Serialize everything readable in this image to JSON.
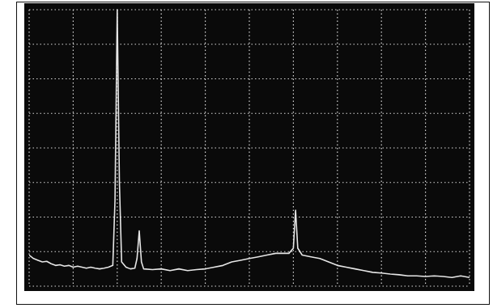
{
  "chart_data": {
    "type": "line",
    "x": [
      0,
      0.1,
      0.2,
      0.3,
      0.4,
      0.5,
      0.6,
      0.7,
      0.8,
      0.9,
      1.0,
      1.1,
      1.2,
      1.3,
      1.4,
      1.5,
      1.6,
      1.7,
      1.8,
      1.9,
      1.95,
      2.0,
      2.05,
      2.1,
      2.2,
      2.3,
      2.4,
      2.45,
      2.5,
      2.55,
      2.6,
      2.8,
      3.0,
      3.2,
      3.4,
      3.6,
      3.8,
      4.0,
      4.2,
      4.4,
      4.6,
      4.8,
      5.0,
      5.2,
      5.4,
      5.6,
      5.8,
      5.9,
      6.0,
      6.05,
      6.1,
      6.2,
      6.4,
      6.6,
      6.8,
      7.0,
      7.2,
      7.4,
      7.6,
      7.8,
      8.0,
      8.2,
      8.4,
      8.6,
      8.8,
      9.0,
      9.2,
      9.4,
      9.6,
      9.8,
      10.0
    ],
    "values": [
      0.9,
      0.8,
      0.75,
      0.7,
      0.72,
      0.65,
      0.6,
      0.62,
      0.58,
      0.6,
      0.55,
      0.58,
      0.55,
      0.52,
      0.55,
      0.52,
      0.5,
      0.52,
      0.55,
      0.6,
      2.5,
      8.0,
      3.0,
      0.7,
      0.55,
      0.5,
      0.52,
      0.8,
      1.6,
      0.7,
      0.5,
      0.48,
      0.5,
      0.45,
      0.5,
      0.45,
      0.48,
      0.5,
      0.55,
      0.6,
      0.7,
      0.75,
      0.8,
      0.85,
      0.9,
      0.95,
      0.95,
      0.95,
      1.1,
      2.2,
      1.1,
      0.9,
      0.85,
      0.8,
      0.7,
      0.6,
      0.55,
      0.5,
      0.45,
      0.4,
      0.38,
      0.35,
      0.33,
      0.3,
      0.3,
      0.28,
      0.3,
      0.28,
      0.25,
      0.3,
      0.25
    ],
    "color": "#e6e6e6",
    "xlim": [
      0,
      10
    ],
    "xticks": [
      0,
      1,
      2,
      3,
      4,
      5,
      6,
      7,
      8,
      9,
      10
    ],
    "ylim": [
      0,
      8
    ],
    "yticks": [
      0,
      1,
      2,
      3,
      4,
      5,
      6,
      7,
      8
    ],
    "grid": true,
    "tick_labels": false
  }
}
